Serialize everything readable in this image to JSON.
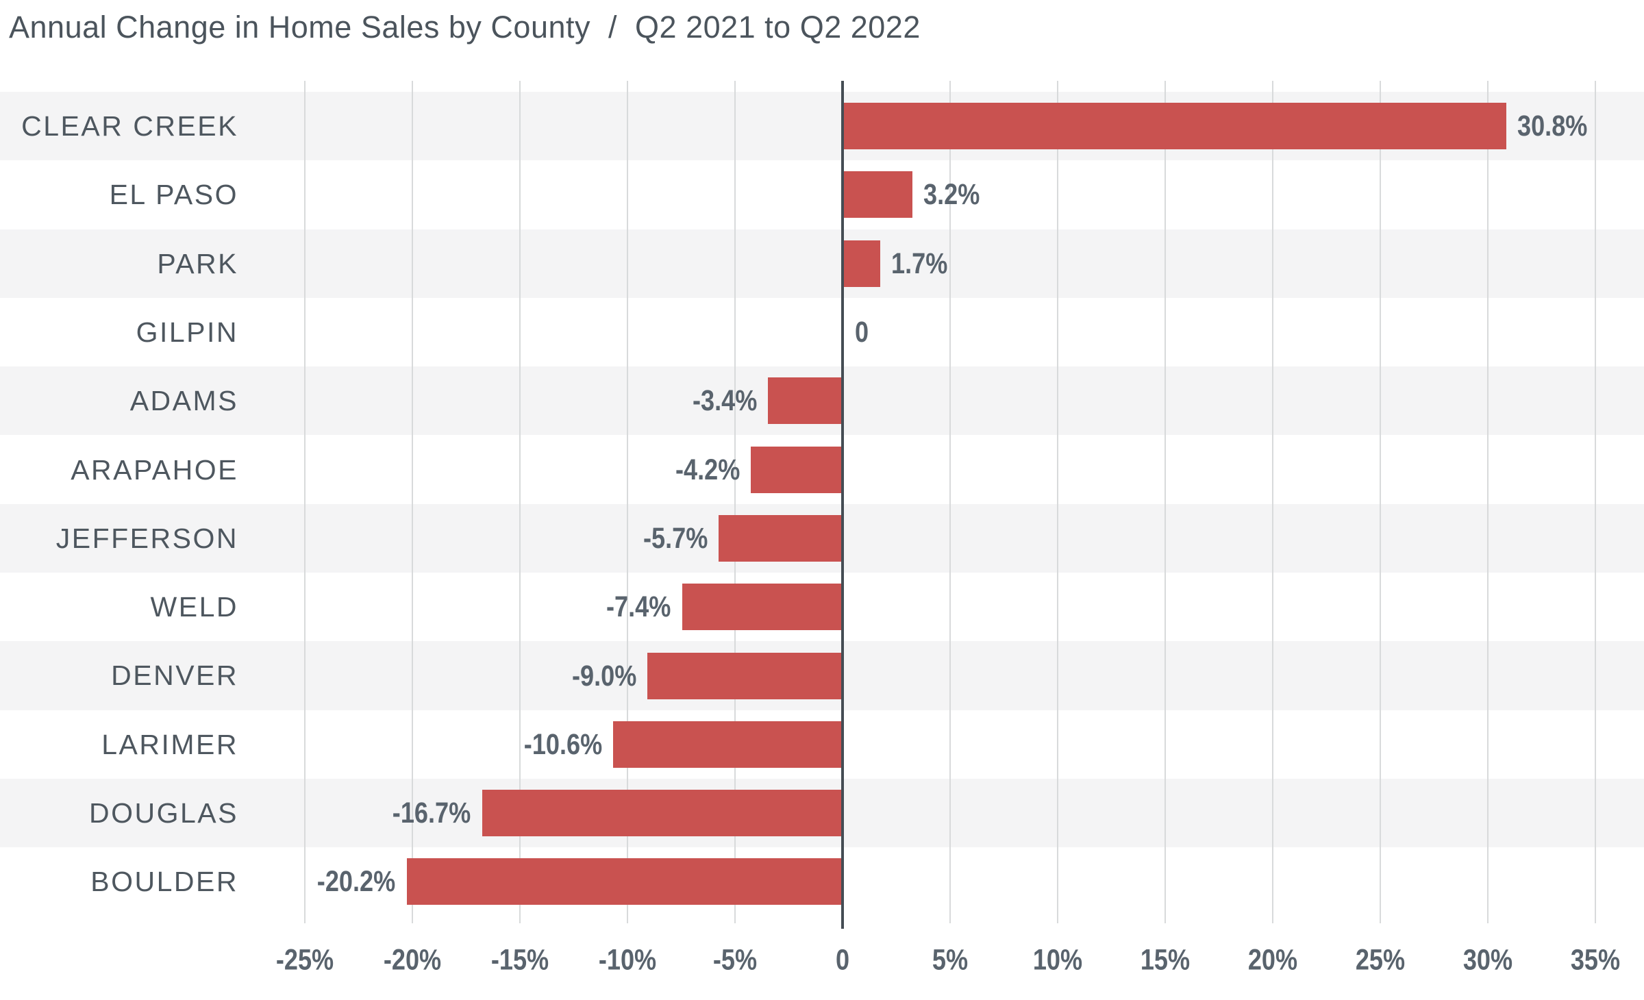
{
  "title": {
    "main": "Annual Change in Home Sales by County",
    "separator": "/",
    "period": "Q2 2021 to Q2 2022"
  },
  "chart_data": {
    "type": "bar",
    "orientation": "horizontal",
    "title": "Annual Change in Home Sales by County / Q2 2021 to Q2 2022",
    "categories": [
      "CLEAR CREEK",
      "EL PASO",
      "PARK",
      "GILPIN",
      "ADAMS",
      "ARAPAHOE",
      "JEFFERSON",
      "WELD",
      "DENVER",
      "LARIMER",
      "DOUGLAS",
      "BOULDER"
    ],
    "values": [
      30.8,
      3.2,
      1.7,
      0,
      -3.4,
      -4.2,
      -5.7,
      -7.4,
      -9.0,
      -10.6,
      -16.7,
      -20.2
    ],
    "value_labels": [
      "30.8%",
      "3.2%",
      "1.7%",
      "0",
      "-3.4%",
      "-4.2%",
      "-5.7%",
      "-7.4%",
      "-9.0%",
      "-10.6%",
      "-16.7%",
      "-20.2%"
    ],
    "xlabel": "",
    "ylabel": "",
    "xlim": [
      -25,
      35
    ],
    "x_ticks": [
      -25,
      -20,
      -15,
      -10,
      -5,
      0,
      5,
      10,
      15,
      20,
      25,
      30,
      35
    ],
    "x_tick_labels": [
      "-25%",
      "-20%",
      "-15%",
      "-10%",
      "-5%",
      "0",
      "5%",
      "10%",
      "15%",
      "20%",
      "25%",
      "30%",
      "35%"
    ],
    "grid": "vertical-gridlines-every-5pct",
    "legend": "none"
  },
  "colors": {
    "bar": "#c95250",
    "band_stripe": "#f4f4f5",
    "band_plain": "#ffffff",
    "gridline": "#d8dadb",
    "zero_line": "#454d54",
    "title_text": "#4b545c",
    "county_text": "#4e575f",
    "number_text": "#59636d",
    "background": "#ffffff"
  }
}
